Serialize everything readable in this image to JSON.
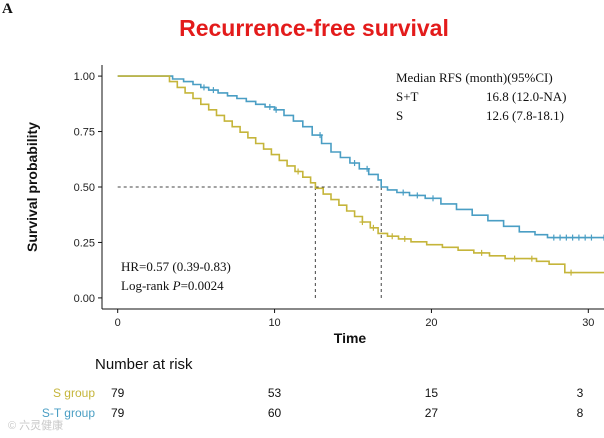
{
  "panel_label": "A",
  "watermark": "© 六灵健康",
  "chart_data": {
    "type": "line",
    "title": "Recurrence-free survival",
    "xlabel": "Time",
    "ylabel": "Survival probability",
    "xlim": [
      -1,
      31
    ],
    "ylim": [
      -0.05,
      1.05
    ],
    "xticks": [
      0,
      10,
      20,
      30
    ],
    "yticks": [
      0.0,
      0.25,
      0.5,
      0.75,
      1.0
    ],
    "ytick_labels": [
      "0.00",
      "0.25",
      "0.50",
      "0.75",
      "1.00"
    ],
    "median_line_y": 0.5,
    "colors": {
      "S+T": "#4a9ec4",
      "S": "#c5b53a"
    },
    "series": [
      {
        "name": "S+T",
        "color": "#4a9ec4",
        "times": [
          0,
          3,
          3.5,
          4.2,
          4.8,
          5.3,
          5.8,
          6.4,
          7.0,
          7.6,
          8.2,
          8.8,
          9.4,
          10.0,
          10.6,
          11.2,
          11.8,
          12.4,
          13.0,
          13.6,
          14.2,
          14.8,
          15.4,
          16.0,
          16.6,
          16.8,
          17.2,
          17.8,
          18.6,
          19.6,
          20.6,
          21.6,
          22.6,
          23.6,
          24.6,
          25.6,
          26.6,
          27.4,
          28.2,
          29.0,
          30.0,
          31.0
        ],
        "survival": [
          1.0,
          1.0,
          0.987,
          0.975,
          0.962,
          0.949,
          0.937,
          0.924,
          0.911,
          0.899,
          0.886,
          0.873,
          0.861,
          0.848,
          0.823,
          0.797,
          0.772,
          0.734,
          0.696,
          0.658,
          0.633,
          0.608,
          0.582,
          0.557,
          0.532,
          0.5,
          0.487,
          0.475,
          0.462,
          0.449,
          0.424,
          0.399,
          0.373,
          0.348,
          0.323,
          0.298,
          0.285,
          0.272,
          0.272,
          0.272,
          0.272,
          0.272
        ],
        "censor_times": [
          5.5,
          6.1,
          9.7,
          10.1,
          12.9,
          15.1,
          15.9,
          18.2,
          19.1,
          20.1,
          27.8,
          28.2,
          28.6,
          29.0,
          29.4,
          29.8,
          30.2,
          31.0
        ],
        "median": 16.8,
        "median_text": "16.8 (12.0-NA)"
      },
      {
        "name": "S",
        "color": "#c5b53a",
        "times": [
          0,
          2.8,
          3.3,
          3.8,
          4.3,
          4.8,
          5.3,
          5.8,
          6.3,
          6.8,
          7.3,
          7.8,
          8.3,
          8.8,
          9.3,
          9.8,
          10.3,
          10.8,
          11.3,
          11.8,
          12.3,
          12.6,
          13.1,
          13.6,
          14.1,
          14.6,
          15.1,
          15.6,
          16.1,
          16.6,
          17.2,
          17.9,
          18.7,
          19.7,
          20.7,
          21.7,
          22.7,
          23.7,
          24.7,
          25.7,
          26.7,
          27.5,
          28.5,
          31.0
        ],
        "survival": [
          1.0,
          1.0,
          0.975,
          0.949,
          0.924,
          0.899,
          0.873,
          0.848,
          0.823,
          0.797,
          0.772,
          0.747,
          0.722,
          0.696,
          0.671,
          0.646,
          0.62,
          0.595,
          0.57,
          0.544,
          0.519,
          0.494,
          0.468,
          0.443,
          0.418,
          0.392,
          0.367,
          0.342,
          0.316,
          0.291,
          0.278,
          0.266,
          0.253,
          0.24,
          0.228,
          0.215,
          0.203,
          0.19,
          0.177,
          0.177,
          0.165,
          0.152,
          0.114,
          0.114
        ],
        "censor_times": [
          11.5,
          15.6,
          16.3,
          17.5,
          18.3,
          23.2,
          25.3,
          26.4,
          28.9
        ],
        "median": 12.6,
        "median_text": "12.6 (7.8-18.1)"
      }
    ],
    "annotations": {
      "median_header": "Median RFS (month)(95%CI)",
      "median_rows": [
        {
          "group": "S+T",
          "value": "16.8 (12.0-NA)"
        },
        {
          "group": "S",
          "value": "12.6 (7.8-18.1)"
        }
      ],
      "hr_text": "HR=0.57 (0.39-0.83)",
      "logrank_prefix": "Log-rank ",
      "logrank_p": "P",
      "logrank_value": "=0.0024"
    }
  },
  "risk_table": {
    "title": "Number at risk",
    "times": [
      0,
      10,
      20,
      30
    ],
    "rows": [
      {
        "label": "S group",
        "color": "#c5b53a",
        "values": [
          "79",
          "53",
          "15",
          "3"
        ]
      },
      {
        "label": "S-T group",
        "color": "#4a9ec4",
        "values": [
          "79",
          "60",
          "27",
          "8"
        ]
      }
    ]
  }
}
